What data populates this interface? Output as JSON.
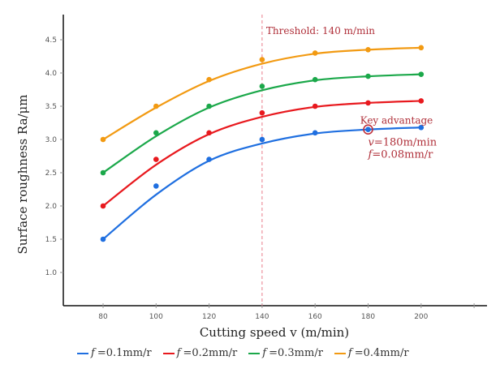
{
  "chart_data": {
    "type": "line",
    "title": "",
    "xlabel": "Cutting speed v (m/min)",
    "ylabel": "Surface roughness Ra/μm",
    "x": [
      80,
      100,
      120,
      140,
      160,
      180,
      200
    ],
    "xticks": [
      "80",
      "100",
      "120",
      "140",
      "160",
      "180",
      "200"
    ],
    "yticks": [
      "1.0",
      "1.5",
      "2.0",
      "2.5",
      "3.0",
      "3.5",
      "4.0",
      "4.5"
    ],
    "xlim": [
      68,
      230
    ],
    "ylim": [
      0.5,
      4.9
    ],
    "grid": false,
    "legend_position": "bottom",
    "series": [
      {
        "name": "f=0.1mm/r",
        "f_symbol": "f",
        "label_rest": "=0.1mm/r",
        "color": "#1f6fe0",
        "values": [
          1.5,
          2.3,
          2.7,
          3.0,
          3.1,
          3.15,
          3.18
        ],
        "fit": [
          1.5,
          2.17,
          2.68,
          2.94,
          3.09,
          3.15,
          3.18
        ]
      },
      {
        "name": "f=0.2mm/r",
        "f_symbol": "f",
        "label_rest": "=0.2mm/r",
        "color": "#e8191e",
        "values": [
          2.0,
          2.7,
          3.1,
          3.4,
          3.5,
          3.55,
          3.58
        ],
        "fit": [
          2.0,
          2.62,
          3.08,
          3.34,
          3.49,
          3.55,
          3.58
        ]
      },
      {
        "name": "f=0.3mm/r",
        "f_symbol": "f",
        "label_rest": "=0.3mm/r",
        "color": "#1ba84a",
        "values": [
          2.5,
          3.1,
          3.5,
          3.8,
          3.9,
          3.95,
          3.98
        ],
        "fit": [
          2.5,
          3.05,
          3.48,
          3.74,
          3.89,
          3.95,
          3.98
        ]
      },
      {
        "name": "f=0.4mm/r",
        "f_symbol": "f",
        "label_rest": "=0.4mm/r",
        "color": "#f29a12",
        "values": [
          3.0,
          3.5,
          3.9,
          4.2,
          4.3,
          4.35,
          4.38
        ],
        "fit": [
          3.0,
          3.48,
          3.88,
          4.14,
          4.29,
          4.35,
          4.38
        ]
      }
    ],
    "annotations": {
      "threshold": {
        "x": 140,
        "label": "Threshold: 140 m/min",
        "color": "#e87a8a"
      },
      "key_point": {
        "x": 180,
        "y": 3.15,
        "title": "Key advantage",
        "line1": "v=180m/min",
        "line2_symbol": "f",
        "line2_rest": "=0.08mm/r",
        "color": "#c0303a"
      }
    }
  }
}
